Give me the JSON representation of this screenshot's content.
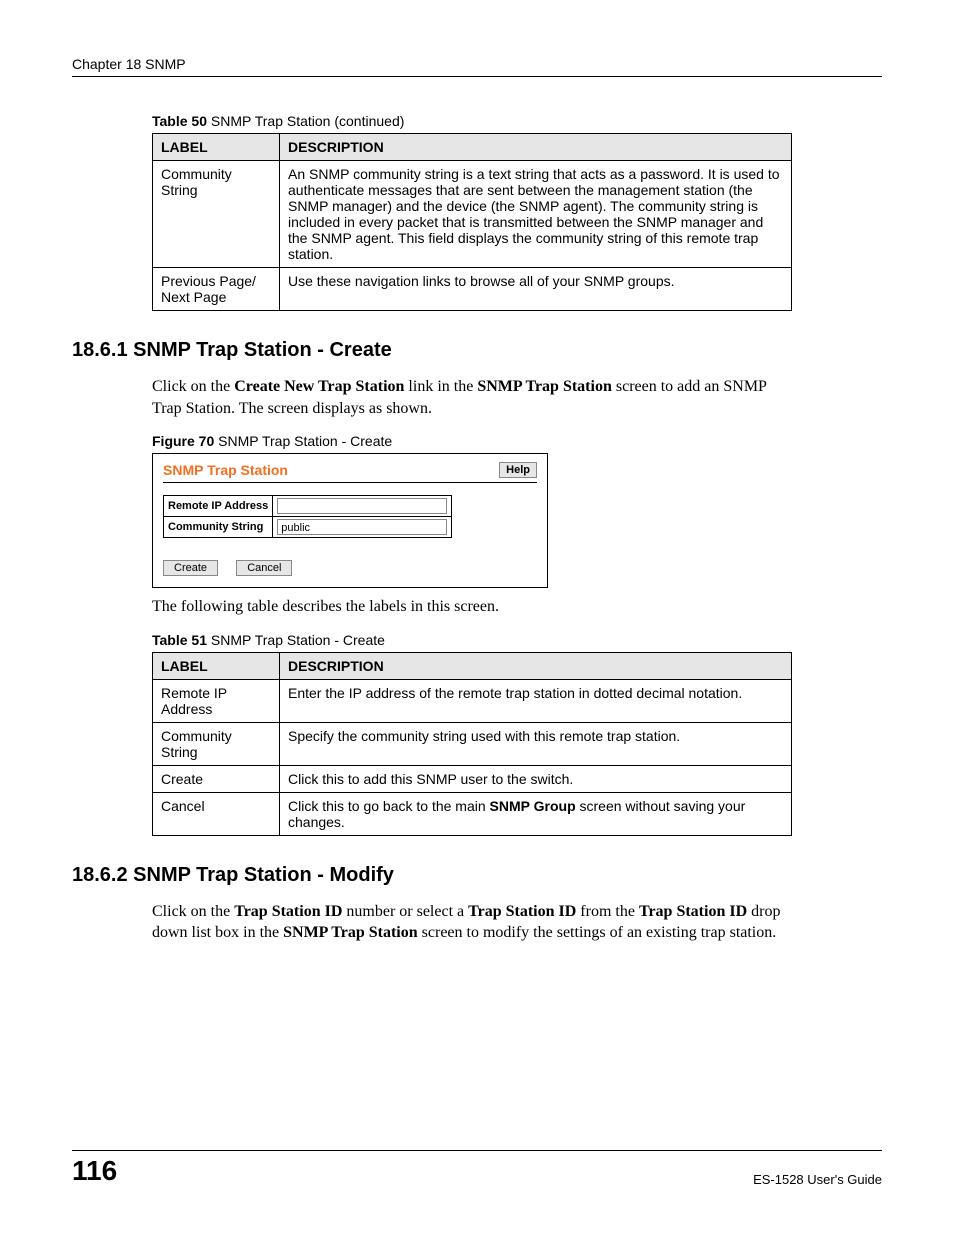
{
  "chapter_line": "Chapter 18 SNMP",
  "table50": {
    "caption_bold": "Table 50",
    "caption_rest": "   SNMP Trap Station  (continued)",
    "headers": [
      "LABEL",
      "DESCRIPTION"
    ],
    "rows": [
      {
        "label": "Community String",
        "desc": "An SNMP community string is a text string that acts as a password. It is used to authenticate messages that are sent between the management station (the SNMP manager) and the device (the SNMP agent). The community string is included in every packet that is transmitted between the SNMP manager and the SNMP agent. This field displays the community string of this remote trap station."
      },
      {
        "label": "Previous Page/ Next Page",
        "desc": "Use these navigation links to browse all of your SNMP groups."
      }
    ]
  },
  "section1": {
    "heading": "18.6.1  SNMP Trap Station - Create",
    "para_pre": "Click on the ",
    "para_b1": "Create New Trap Station",
    "para_mid1": " link in the ",
    "para_b2": "SNMP Trap Station",
    "para_mid2": " screen to add an SNMP Trap Station. The screen displays as shown."
  },
  "figure70": {
    "caption_bold": "Figure 70",
    "caption_rest": "   SNMP Trap Station - Create",
    "title": "SNMP Trap Station",
    "help": "Help",
    "row1_label": "Remote IP Address",
    "row1_value": "",
    "row2_label": "Community String",
    "row2_value": "public",
    "btn_create": "Create",
    "btn_cancel": "Cancel"
  },
  "para_after_fig": "The following table describes the labels in this screen.",
  "table51": {
    "caption_bold": "Table 51",
    "caption_rest": "   SNMP Trap Station - Create",
    "headers": [
      "LABEL",
      "DESCRIPTION"
    ],
    "rows": [
      {
        "label": "Remote IP Address",
        "desc": "Enter the IP address of the remote trap station in dotted decimal notation."
      },
      {
        "label": "Community String",
        "desc": "Specify the community string used with this remote trap station."
      },
      {
        "label": "Create",
        "desc": "Click this to add this SNMP user to the switch."
      }
    ],
    "row_cancel": {
      "label": "Cancel",
      "desc_pre": "Click this to go back to the main ",
      "desc_bold": "SNMP Group",
      "desc_post": " screen without saving your changes."
    }
  },
  "section2": {
    "heading": "18.6.2  SNMP Trap Station - Modify",
    "para_pre": "Click on the ",
    "b1": "Trap Station ID",
    "mid1": " number or select a ",
    "b2": "Trap Station ID",
    "mid2": " from the ",
    "b3": "Trap Station ID",
    "mid3": " drop down list box in the ",
    "b4": "SNMP Trap Station",
    "mid4": " screen to modify the settings of an existing trap station."
  },
  "footer": {
    "page": "116",
    "guide": "ES-1528 User's Guide"
  }
}
